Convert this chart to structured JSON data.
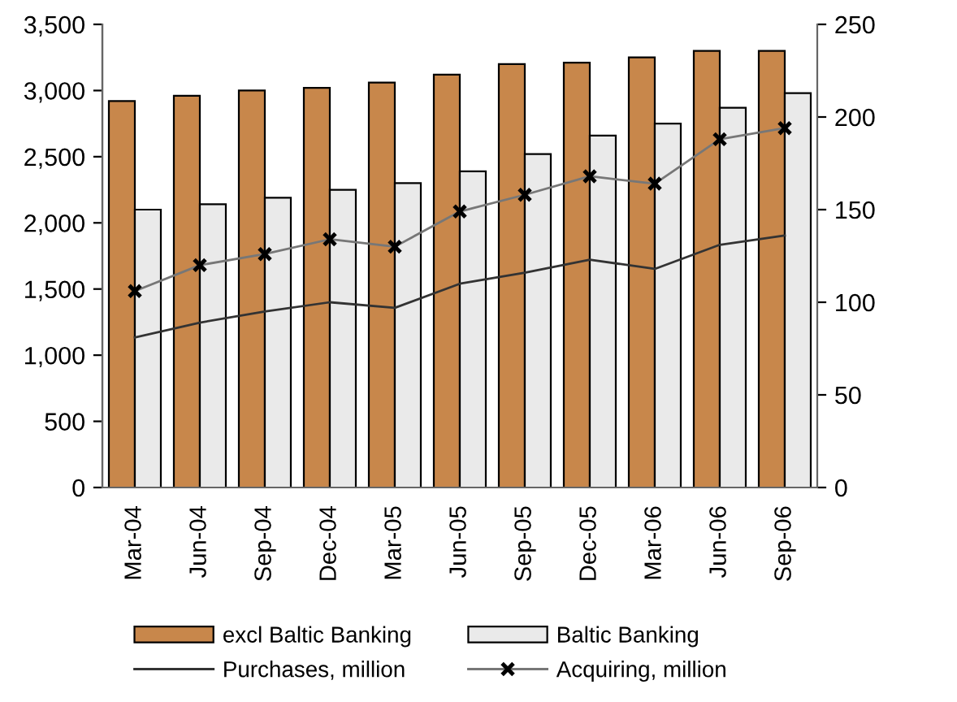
{
  "chart_data": {
    "type": "bar",
    "categories": [
      "Mar-04",
      "Jun-04",
      "Sep-04",
      "Dec-04",
      "Mar-05",
      "Jun-05",
      "Sep-05",
      "Dec-05",
      "Mar-06",
      "Jun-06",
      "Sep-06"
    ],
    "series": [
      {
        "name": "excl Baltic Banking",
        "color": "#c8874b",
        "values": [
          2920,
          2960,
          3000,
          3020,
          3060,
          3120,
          3200,
          3210,
          3250,
          3300,
          3300
        ]
      },
      {
        "name": "Baltic Banking",
        "color": "#eaeaea",
        "values": [
          2100,
          2140,
          2190,
          2250,
          2300,
          2390,
          2520,
          2660,
          2750,
          2870,
          2980
        ]
      },
      {
        "name": "Purchases, million",
        "type": "line",
        "axis": "y2",
        "color": "#333333",
        "marker": "none",
        "values": [
          81,
          89,
          95,
          100,
          97,
          110,
          116,
          123,
          118,
          131,
          136
        ]
      },
      {
        "name": "Acquiring, million",
        "type": "line",
        "axis": "y2",
        "color": "#777777",
        "marker": "cross",
        "values": [
          106,
          120,
          126,
          134,
          130,
          149,
          158,
          168,
          164,
          188,
          194
        ]
      }
    ],
    "ylim": [
      0,
      3500
    ],
    "yticks": [
      {
        "value": 0,
        "label": "0"
      },
      {
        "value": 500,
        "label": "500"
      },
      {
        "value": 1000,
        "label": "1,000"
      },
      {
        "value": 1500,
        "label": "1,500"
      },
      {
        "value": 2000,
        "label": "2,000"
      },
      {
        "value": 2500,
        "label": "2,500"
      },
      {
        "value": 3000,
        "label": "3,000"
      },
      {
        "value": 3500,
        "label": "3,500"
      }
    ],
    "y2lim": [
      0,
      250
    ],
    "y2ticks": [
      0,
      50,
      100,
      150,
      200,
      250
    ],
    "grid": false,
    "legend": "bottom"
  }
}
